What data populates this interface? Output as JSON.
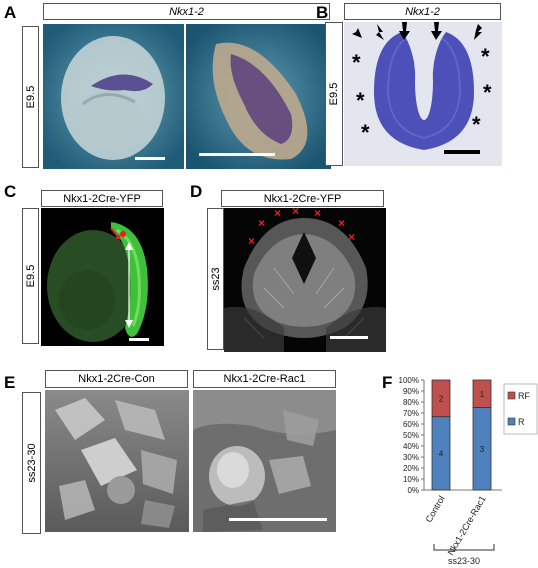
{
  "panels": {
    "A": {
      "letter": "A",
      "header": "Nkx1-2",
      "stage": "E9.5"
    },
    "B": {
      "letter": "B",
      "header": "Nkx1-2",
      "stage": "E9.5",
      "asterisk": "*"
    },
    "C": {
      "letter": "C",
      "header": "Nkx1-2Cre-YFP",
      "stage": "E9.5"
    },
    "D": {
      "letter": "D",
      "header": "Nkx1-2Cre-YFP",
      "stage": "ss23",
      "marker": "×"
    },
    "E": {
      "letter": "E",
      "header_left": "Nkx1-2Cre-Con",
      "header_right": "Nkx1-2Cre-Rac1",
      "stage": "ss23-30"
    },
    "F": {
      "letter": "F",
      "group_label": "ss23-30"
    }
  },
  "colors": {
    "RF": "#c0504d",
    "R": "#4f81bd"
  },
  "chart_data": {
    "type": "bar",
    "stacked": true,
    "percent": true,
    "categories": [
      "Control",
      "Nkx1-2Cre-Rac1"
    ],
    "series": [
      {
        "name": "R",
        "values": [
          4,
          3
        ],
        "labels": [
          "4",
          "3"
        ]
      },
      {
        "name": "RF",
        "values": [
          2,
          1
        ],
        "labels": [
          "2",
          "1"
        ]
      }
    ],
    "yticks": [
      "0%",
      "10%",
      "20%",
      "30%",
      "40%",
      "50%",
      "60%",
      "70%",
      "80%",
      "90%",
      "100%"
    ],
    "ylim": [
      0,
      100
    ],
    "legend": [
      "RF",
      "R"
    ],
    "legend_position": "right",
    "grid": false
  }
}
